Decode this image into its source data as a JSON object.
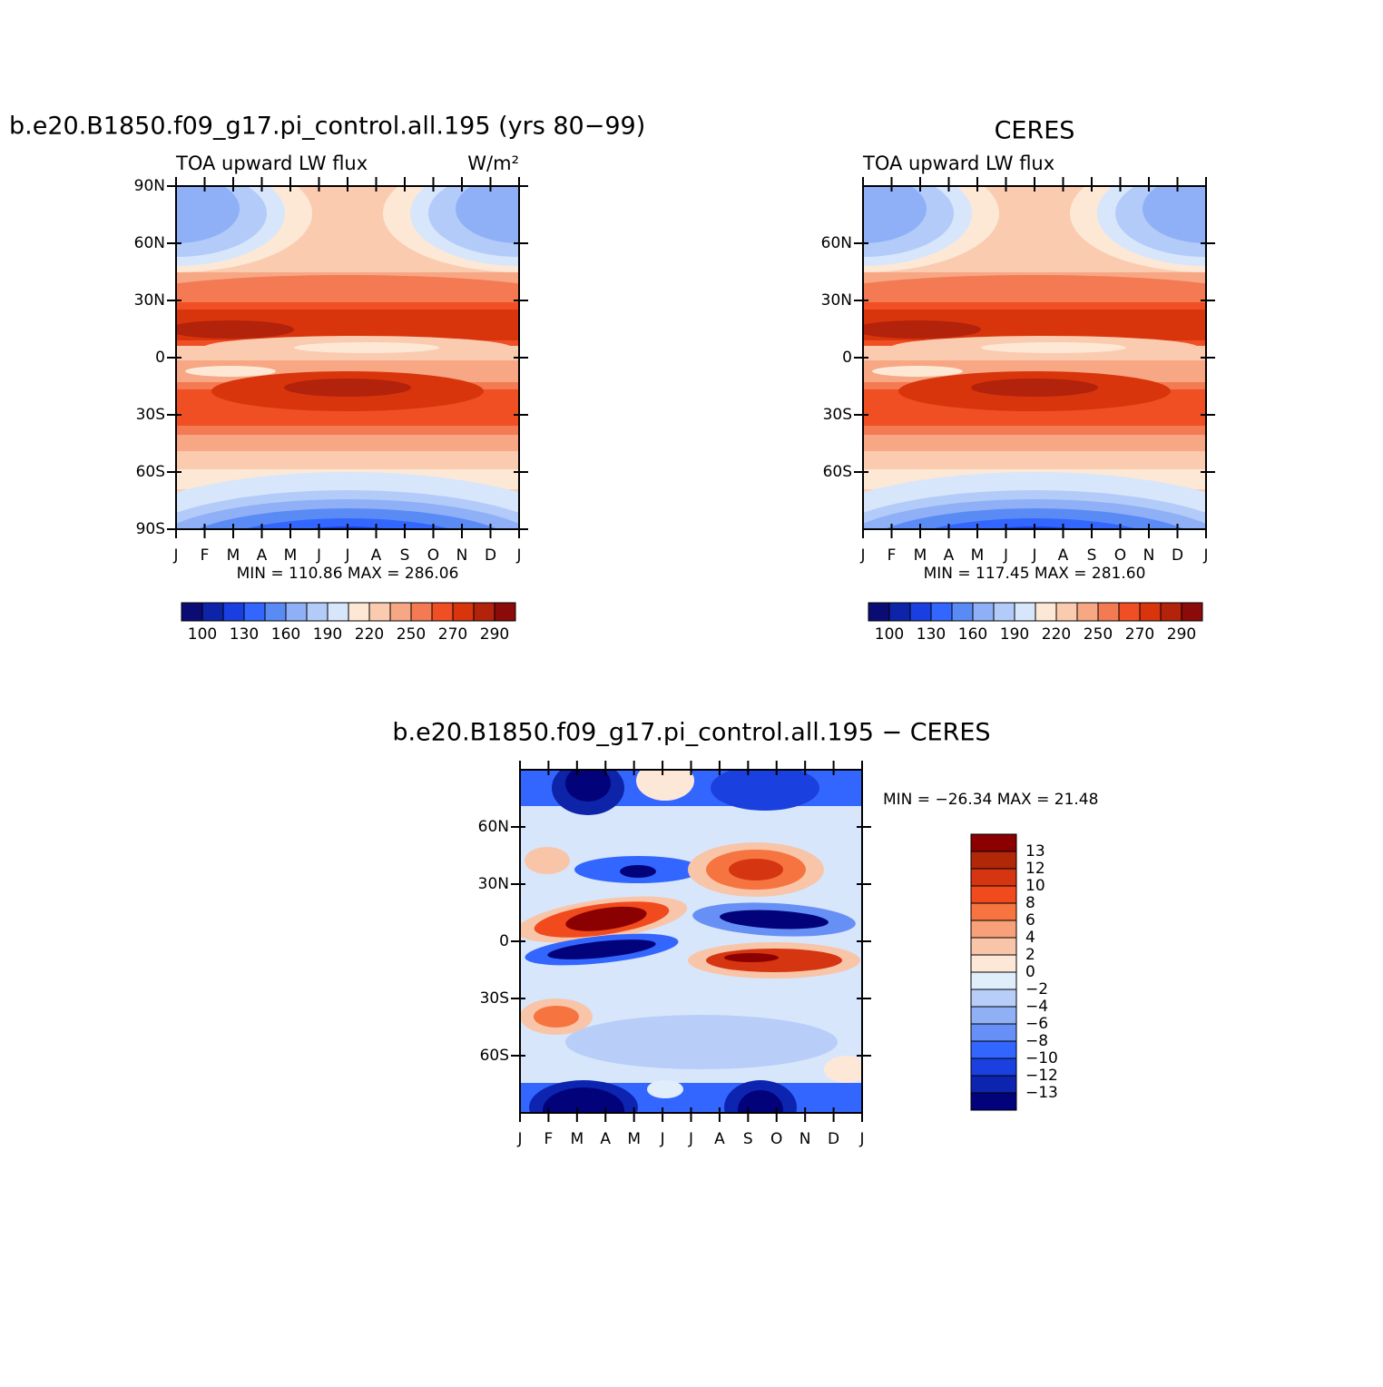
{
  "chart_data": [
    {
      "type": "contour",
      "title": "b.e20.B1850.f09_g17.pi_control.all.195 (yrs 80−99)",
      "subtitle": "TOA upward LW flux",
      "units": "W/m²",
      "categories": [
        "J",
        "F",
        "M",
        "A",
        "M",
        "J",
        "J",
        "A",
        "S",
        "O",
        "N",
        "D",
        "J"
      ],
      "ylim": [
        -90,
        90
      ],
      "yticks": [
        {
          "value": 90,
          "label": "90N"
        },
        {
          "value": 60,
          "label": "60N"
        },
        {
          "value": 30,
          "label": "30N"
        },
        0,
        {
          "value": -30,
          "label": "30S"
        },
        {
          "value": -60,
          "label": "60S"
        },
        {
          "value": -90,
          "label": "90S"
        }
      ],
      "stats": "MIN = 110.86 MAX = 286.06",
      "colorbar": {
        "orientation": "horizontal",
        "colors": [
          "#0b0b74",
          "#0d24a8",
          "#1a3fe0",
          "#3366ff",
          "#5a8bf5",
          "#8fb0f7",
          "#b3cbf8",
          "#d7e6fb",
          "#fde8d6",
          "#fbcbb0",
          "#f7a784",
          "#f37a52",
          "#f04f23",
          "#d8350c",
          "#b3220a",
          "#8b0a0a"
        ],
        "labels": [
          100,
          null,
          130,
          null,
          160,
          null,
          190,
          null,
          220,
          null,
          250,
          null,
          270,
          null,
          290
        ]
      }
    },
    {
      "type": "contour",
      "title": "CERES",
      "subtitle": "TOA upward LW flux",
      "categories": [
        "J",
        "F",
        "M",
        "A",
        "M",
        "J",
        "J",
        "A",
        "S",
        "O",
        "N",
        "D",
        "J"
      ],
      "ylim": [
        -90,
        90
      ],
      "yticks": [
        {
          "value": 60,
          "label": "60N"
        },
        {
          "value": 30,
          "label": "30N"
        },
        0,
        {
          "value": -30,
          "label": "30S"
        },
        {
          "value": -60,
          "label": "60S"
        }
      ],
      "stats": "MIN = 117.45 MAX = 281.60",
      "colorbar": {
        "orientation": "horizontal",
        "colors": [
          "#0b0b74",
          "#0d24a8",
          "#1a3fe0",
          "#3366ff",
          "#5a8bf5",
          "#8fb0f7",
          "#b3cbf8",
          "#d7e6fb",
          "#fde8d6",
          "#fbcbb0",
          "#f7a784",
          "#f37a52",
          "#f04f23",
          "#d8350c",
          "#b3220a",
          "#8b0a0a"
        ],
        "labels": [
          100,
          null,
          130,
          null,
          160,
          null,
          190,
          null,
          220,
          null,
          250,
          null,
          270,
          null,
          290
        ]
      }
    },
    {
      "type": "contour",
      "title": "b.e20.B1850.f09_g17.pi_control.all.195 − CERES",
      "categories": [
        "J",
        "F",
        "M",
        "A",
        "M",
        "J",
        "J",
        "A",
        "S",
        "O",
        "N",
        "D",
        "J"
      ],
      "ylim": [
        -90,
        90
      ],
      "yticks": [
        {
          "value": 60,
          "label": "60N"
        },
        {
          "value": 30,
          "label": "30N"
        },
        0,
        {
          "value": -30,
          "label": "30S"
        },
        {
          "value": -60,
          "label": "60S"
        }
      ],
      "stats": "MIN = −26.34 MAX =  21.48",
      "colorbar": {
        "orientation": "vertical",
        "colors": [
          "#8b0000",
          "#b02808",
          "#d53510",
          "#f04a1d",
          "#f67440",
          "#f8a07a",
          "#f9c5a8",
          "#fde8d8",
          "#e0eefc",
          "#b8cef8",
          "#90b0f5",
          "#6690f5",
          "#3366ff",
          "#1a40e0",
          "#0d24b0",
          "#02037a"
        ],
        "labels": [
          13,
          12,
          10,
          8,
          6,
          4,
          2,
          0,
          {
            "value": -2,
            "label": "−2"
          },
          {
            "value": -4,
            "label": "−4"
          },
          {
            "value": -6,
            "label": "−6"
          },
          {
            "value": -8,
            "label": "−8"
          },
          {
            "value": -10,
            "label": "−10"
          },
          {
            "value": -12,
            "label": "−12"
          },
          {
            "value": -13,
            "label": "−13"
          }
        ]
      }
    }
  ]
}
